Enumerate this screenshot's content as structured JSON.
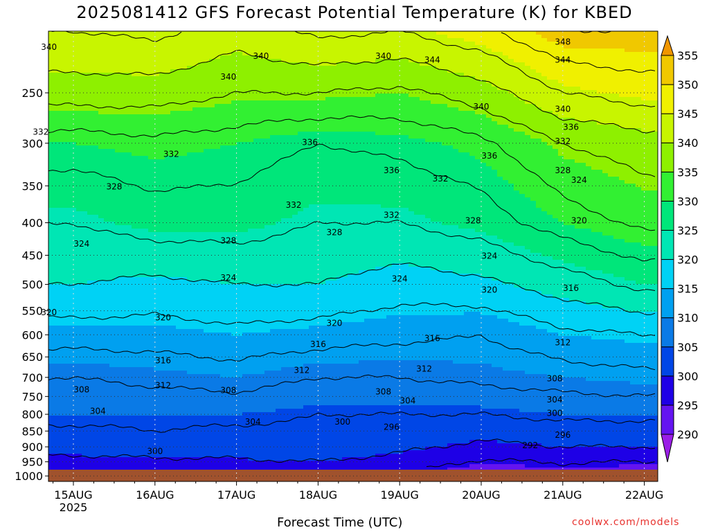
{
  "title": "2025081412 GFS Forecast Potential Temperature (K) for KBED",
  "credit": "coolwx.com/models",
  "chart_data": {
    "type": "heatmap",
    "title": "2025081412 GFS Forecast Potential Temperature (K) for KBED",
    "xlabel": "Forecast Time (UTC)",
    "ylabel": "",
    "x_ticks": [
      "15AUG",
      "16AUG",
      "17AUG",
      "18AUG",
      "19AUG",
      "20AUG",
      "21AUG",
      "22AUG"
    ],
    "x_tick_sublabel": "2025",
    "y_ticks": [
      250,
      300,
      350,
      400,
      450,
      500,
      550,
      600,
      650,
      700,
      750,
      800,
      850,
      900,
      950,
      1000
    ],
    "y_scale": "log-pressure",
    "ylim": [
      1020,
      200
    ],
    "colorbar": {
      "levels": [
        290,
        295,
        300,
        305,
        310,
        315,
        320,
        325,
        330,
        335,
        340,
        345,
        350,
        355
      ],
      "colors": [
        "#9a1ee6",
        "#6414f0",
        "#1e00e6",
        "#0046e6",
        "#0a7ae6",
        "#00a0f0",
        "#00d2f5",
        "#00e6b4",
        "#00e67a",
        "#32f032",
        "#8ef000",
        "#c8f500",
        "#f0f000",
        "#f0c800",
        "#f09600"
      ]
    },
    "grid": true,
    "terrain_color": "#a0522d",
    "contour_interval": 4,
    "series": [
      {
        "values": [
          295,
          295,
          297,
          297,
          296,
          292,
          293,
          292
        ]
      },
      {
        "values": [
          302,
          303,
          302,
          303,
          301,
          299,
          300,
          300
        ]
      },
      {
        "values": [
          305,
          305,
          305,
          304,
          304,
          304,
          305,
          305
        ]
      },
      {
        "values": [
          308,
          309,
          310,
          308,
          308,
          309,
          310,
          311
        ]
      },
      {
        "values": [
          314,
          314,
          315,
          314,
          313,
          312,
          315,
          316
        ]
      },
      {
        "values": [
          320,
          319,
          320,
          320,
          318,
          319,
          322,
          325
        ]
      },
      {
        "values": [
          324,
          326,
          326,
          324,
          324,
          326,
          330,
          333
        ]
      },
      {
        "values": [
          330,
          331,
          330,
          328,
          329,
          331,
          336,
          338
        ]
      },
      {
        "values": [
          338,
          338,
          336,
          336,
          335,
          338,
          344,
          346
        ]
      },
      {
        "values": [
          344,
          345,
          342,
          345,
          344,
          347,
          352,
          352
        ]
      }
    ],
    "series_levels": [
      1000,
      900,
      800,
      700,
      600,
      500,
      400,
      300,
      250,
      200
    ],
    "contour_labels": [
      {
        "text": "340",
        "x": 14.7,
        "p": 212
      },
      {
        "text": "340",
        "x": 16.9,
        "p": 236
      },
      {
        "text": "340",
        "x": 17.3,
        "p": 219
      },
      {
        "text": "340",
        "x": 18.8,
        "p": 219
      },
      {
        "text": "344",
        "x": 19.4,
        "p": 222
      },
      {
        "text": "340",
        "x": 20.0,
        "p": 263
      },
      {
        "text": "348",
        "x": 21.0,
        "p": 208
      },
      {
        "text": "344",
        "x": 21.0,
        "p": 222
      },
      {
        "text": "340",
        "x": 21.0,
        "p": 265
      },
      {
        "text": "336",
        "x": 21.1,
        "p": 283
      },
      {
        "text": "332",
        "x": 14.6,
        "p": 288
      },
      {
        "text": "332",
        "x": 16.2,
        "p": 312
      },
      {
        "text": "336",
        "x": 17.9,
        "p": 299
      },
      {
        "text": "336",
        "x": 18.9,
        "p": 331
      },
      {
        "text": "336",
        "x": 20.1,
        "p": 314
      },
      {
        "text": "332",
        "x": 19.5,
        "p": 341
      },
      {
        "text": "332",
        "x": 21.0,
        "p": 298
      },
      {
        "text": "328",
        "x": 21.0,
        "p": 331
      },
      {
        "text": "324",
        "x": 21.2,
        "p": 343
      },
      {
        "text": "328",
        "x": 15.5,
        "p": 351
      },
      {
        "text": "332",
        "x": 17.7,
        "p": 375
      },
      {
        "text": "332",
        "x": 18.9,
        "p": 389
      },
      {
        "text": "328",
        "x": 19.9,
        "p": 397
      },
      {
        "text": "320",
        "x": 21.2,
        "p": 397
      },
      {
        "text": "328",
        "x": 16.9,
        "p": 427
      },
      {
        "text": "328",
        "x": 18.2,
        "p": 414
      },
      {
        "text": "324",
        "x": 15.1,
        "p": 432
      },
      {
        "text": "324",
        "x": 20.1,
        "p": 451
      },
      {
        "text": "324",
        "x": 16.9,
        "p": 488
      },
      {
        "text": "324",
        "x": 19.0,
        "p": 490
      },
      {
        "text": "320",
        "x": 20.1,
        "p": 510
      },
      {
        "text": "316",
        "x": 21.1,
        "p": 507
      },
      {
        "text": "320",
        "x": 14.7,
        "p": 553
      },
      {
        "text": "320",
        "x": 16.1,
        "p": 564
      },
      {
        "text": "320",
        "x": 18.2,
        "p": 575
      },
      {
        "text": "316",
        "x": 18.0,
        "p": 621
      },
      {
        "text": "316",
        "x": 19.4,
        "p": 608
      },
      {
        "text": "312",
        "x": 21.0,
        "p": 617
      },
      {
        "text": "316",
        "x": 16.1,
        "p": 659
      },
      {
        "text": "312",
        "x": 17.8,
        "p": 682
      },
      {
        "text": "312",
        "x": 19.3,
        "p": 679
      },
      {
        "text": "308",
        "x": 20.9,
        "p": 703
      },
      {
        "text": "312",
        "x": 16.1,
        "p": 721
      },
      {
        "text": "308",
        "x": 15.1,
        "p": 732
      },
      {
        "text": "308",
        "x": 16.9,
        "p": 734
      },
      {
        "text": "308",
        "x": 18.8,
        "p": 737
      },
      {
        "text": "304",
        "x": 19.1,
        "p": 762
      },
      {
        "text": "304",
        "x": 20.9,
        "p": 759
      },
      {
        "text": "304",
        "x": 15.3,
        "p": 791
      },
      {
        "text": "304",
        "x": 17.2,
        "p": 822
      },
      {
        "text": "300",
        "x": 18.3,
        "p": 822
      },
      {
        "text": "296",
        "x": 18.9,
        "p": 838
      },
      {
        "text": "300",
        "x": 20.9,
        "p": 797
      },
      {
        "text": "296",
        "x": 21.0,
        "p": 862
      },
      {
        "text": "292",
        "x": 20.6,
        "p": 895
      },
      {
        "text": "300",
        "x": 16.0,
        "p": 915
      }
    ]
  }
}
